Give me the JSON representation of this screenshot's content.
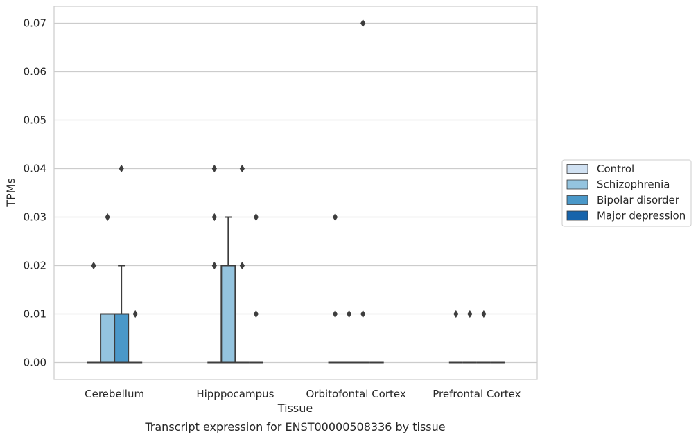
{
  "chart_data": {
    "type": "box",
    "title": "",
    "caption": "Transcript expression for ENST00000508336 by tissue",
    "xlabel": "Tissue",
    "ylabel": "TPMs",
    "ylim": [
      -0.0035,
      0.0735
    ],
    "yticks": [
      "0.00",
      "0.01",
      "0.02",
      "0.03",
      "0.04",
      "0.05",
      "0.06",
      "0.07"
    ],
    "ytick_values": [
      0,
      0.01,
      0.02,
      0.03,
      0.04,
      0.05,
      0.06,
      0.07
    ],
    "grid": true,
    "legend_position": "right",
    "categories": [
      "Cerebellum",
      "Hipppocampus",
      "Orbitofontal Cortex",
      "Prefrontal Cortex"
    ],
    "series": [
      {
        "name": "Control",
        "color": "#d0e1f2",
        "boxes": [
          {
            "q1": 0,
            "median": 0,
            "q3": 0,
            "whisker_low": 0,
            "whisker_high": 0,
            "outliers": [
              0.02
            ]
          },
          {
            "q1": 0,
            "median": 0,
            "q3": 0,
            "whisker_low": 0,
            "whisker_high": 0,
            "outliers": [
              0.02,
              0.03,
              0.04
            ]
          },
          {
            "q1": 0,
            "median": 0,
            "q3": 0,
            "whisker_low": 0,
            "whisker_high": 0,
            "outliers": [
              0.01,
              0.03
            ]
          },
          {
            "q1": 0,
            "median": 0,
            "q3": 0,
            "whisker_low": 0,
            "whisker_high": 0,
            "outliers": [
              0.01
            ]
          }
        ]
      },
      {
        "name": "Schizophrenia",
        "color": "#94c4df",
        "boxes": [
          {
            "q1": 0,
            "median": 0,
            "q3": 0.01,
            "whisker_low": 0,
            "whisker_high": 0.01,
            "outliers": [
              0.03
            ]
          },
          {
            "q1": 0,
            "median": 0,
            "q3": 0.02,
            "whisker_low": 0,
            "whisker_high": 0.03,
            "outliers": []
          },
          {
            "q1": 0,
            "median": 0,
            "q3": 0,
            "whisker_low": 0,
            "whisker_high": 0,
            "outliers": [
              0.01
            ]
          },
          {
            "q1": 0,
            "median": 0,
            "q3": 0,
            "whisker_low": 0,
            "whisker_high": 0,
            "outliers": [
              0.01
            ]
          }
        ]
      },
      {
        "name": "Bipolar disorder",
        "color": "#4a98c9",
        "boxes": [
          {
            "q1": 0,
            "median": 0,
            "q3": 0.01,
            "whisker_low": 0,
            "whisker_high": 0.02,
            "outliers": [
              0.04
            ]
          },
          {
            "q1": 0,
            "median": 0,
            "q3": 0,
            "whisker_low": 0,
            "whisker_high": 0,
            "outliers": [
              0.02,
              0.04
            ]
          },
          {
            "q1": 0,
            "median": 0,
            "q3": 0,
            "whisker_low": 0,
            "whisker_high": 0,
            "outliers": [
              0.01,
              0.07
            ]
          },
          {
            "q1": 0,
            "median": 0,
            "q3": 0,
            "whisker_low": 0,
            "whisker_high": 0,
            "outliers": [
              0.01
            ]
          }
        ]
      },
      {
        "name": "Major depression",
        "color": "#1764ab",
        "boxes": [
          {
            "q1": 0,
            "median": 0,
            "q3": 0,
            "whisker_low": 0,
            "whisker_high": 0,
            "outliers": [
              0.01
            ]
          },
          {
            "q1": 0,
            "median": 0,
            "q3": 0,
            "whisker_low": 0,
            "whisker_high": 0,
            "outliers": [
              0.01,
              0.03
            ]
          },
          {
            "q1": 0,
            "median": 0,
            "q3": 0,
            "whisker_low": 0,
            "whisker_high": 0,
            "outliers": []
          },
          {
            "q1": 0,
            "median": 0,
            "q3": 0,
            "whisker_low": 0,
            "whisker_high": 0,
            "outliers": []
          }
        ]
      }
    ]
  }
}
